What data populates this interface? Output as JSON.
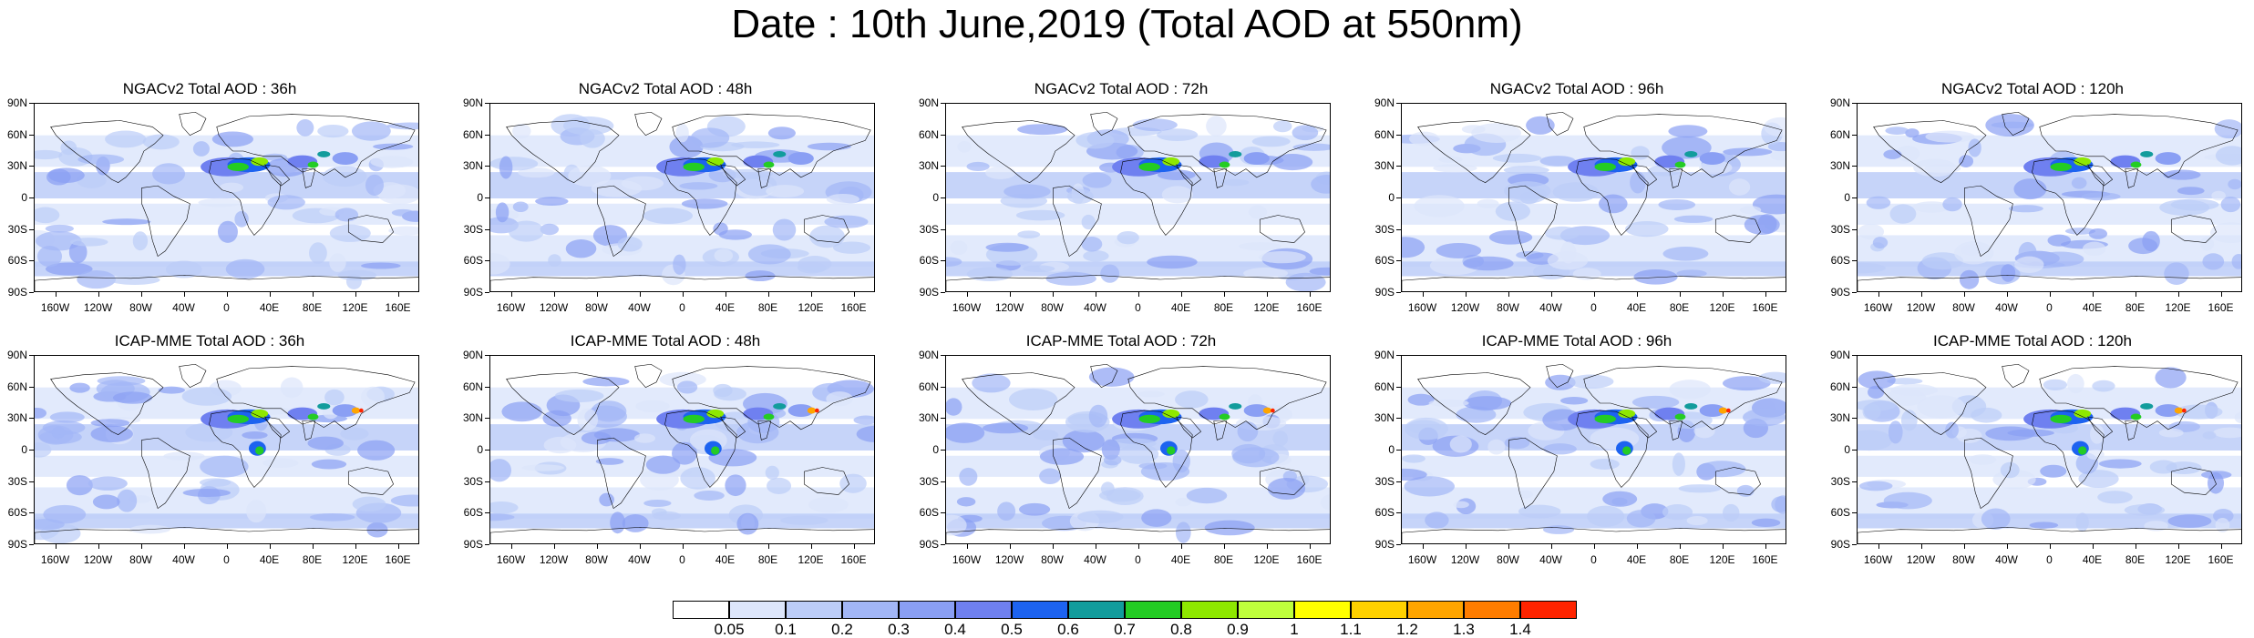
{
  "title": "Date : 10th June,2019 (Total AOD at 550nm)",
  "axes": {
    "lat_labels": [
      "90N",
      "60N",
      "30N",
      "0",
      "30S",
      "60S",
      "90S"
    ],
    "lon_labels": [
      "160W",
      "120W",
      "80W",
      "40W",
      "0",
      "40E",
      "80E",
      "120E",
      "160E"
    ]
  },
  "panels": [
    {
      "title": "NGACv2 Total AOD : 36h"
    },
    {
      "title": "NGACv2 Total AOD : 48h"
    },
    {
      "title": "NGACv2 Total AOD : 72h"
    },
    {
      "title": "NGACv2 Total AOD : 96h"
    },
    {
      "title": "NGACv2 Total AOD : 120h"
    },
    {
      "title": "ICAP-MME Total AOD : 36h"
    },
    {
      "title": "ICAP-MME Total AOD : 48h"
    },
    {
      "title": "ICAP-MME Total AOD : 72h"
    },
    {
      "title": "ICAP-MME Total AOD : 96h"
    },
    {
      "title": "ICAP-MME Total AOD : 120h"
    }
  ],
  "colorbar": {
    "labels": [
      "0.05",
      "0.1",
      "0.2",
      "0.3",
      "0.4",
      "0.5",
      "0.6",
      "0.7",
      "0.8",
      "0.9",
      "1",
      "1.1",
      "1.2",
      "1.3",
      "1.4"
    ],
    "colors": [
      "#ffffff",
      "#dde6fb",
      "#bccdf8",
      "#a2b6f6",
      "#8a9ff4",
      "#6f80f0",
      "#1d63f0",
      "#129c9c",
      "#24cc24",
      "#8ee800",
      "#bfff3c",
      "#ffff00",
      "#ffd100",
      "#ffa500",
      "#ff7d00",
      "#ff2400"
    ]
  }
}
